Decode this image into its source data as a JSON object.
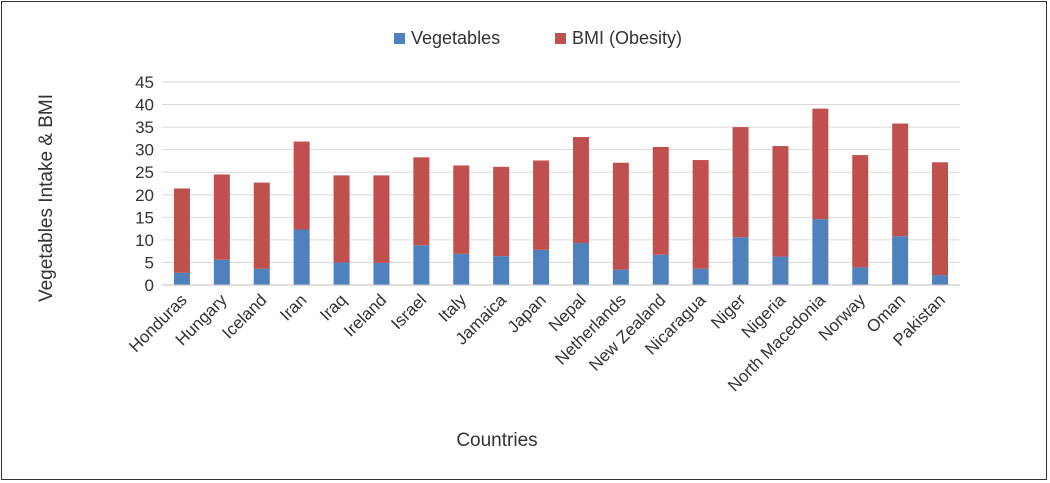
{
  "chart_data": {
    "type": "bar",
    "stacked": true,
    "title": "",
    "xlabel": "Countries",
    "ylabel": "Vegetables Intake  & BMI",
    "ylim": [
      0,
      45
    ],
    "yticks": [
      "0",
      "5",
      "10",
      "15",
      "20",
      "25",
      "30",
      "35",
      "40",
      "45"
    ],
    "grid": true,
    "legend_position": "top",
    "categories": [
      "Honduras",
      "Hungary",
      "Iceland",
      "Iran",
      "Iraq",
      "Ireland",
      "Israel",
      "Italy",
      "Jamaica",
      "Japan",
      "Nepal",
      "Netherlands",
      "New Zealand",
      "Nicaragua",
      "Niger",
      "Nigeria",
      "North Macedonia",
      "Norway",
      "Oman",
      "Pakistan"
    ],
    "series": [
      {
        "name": "Vegetables",
        "color": "#4f81bd",
        "values": [
          2.7,
          5.6,
          3.6,
          12.3,
          5.0,
          4.9,
          8.8,
          6.9,
          6.4,
          7.8,
          9.3,
          3.4,
          6.7,
          3.6,
          10.6,
          6.3,
          14.6,
          3.9,
          10.8,
          2.2
        ]
      },
      {
        "name": "BMI (Obesity)",
        "color": "#c0504d",
        "values": [
          18.7,
          18.9,
          19.1,
          19.5,
          19.3,
          19.4,
          19.5,
          19.6,
          19.8,
          19.8,
          23.5,
          23.7,
          23.9,
          24.1,
          24.4,
          24.5,
          24.5,
          24.9,
          25.0,
          25.0
        ]
      }
    ]
  }
}
